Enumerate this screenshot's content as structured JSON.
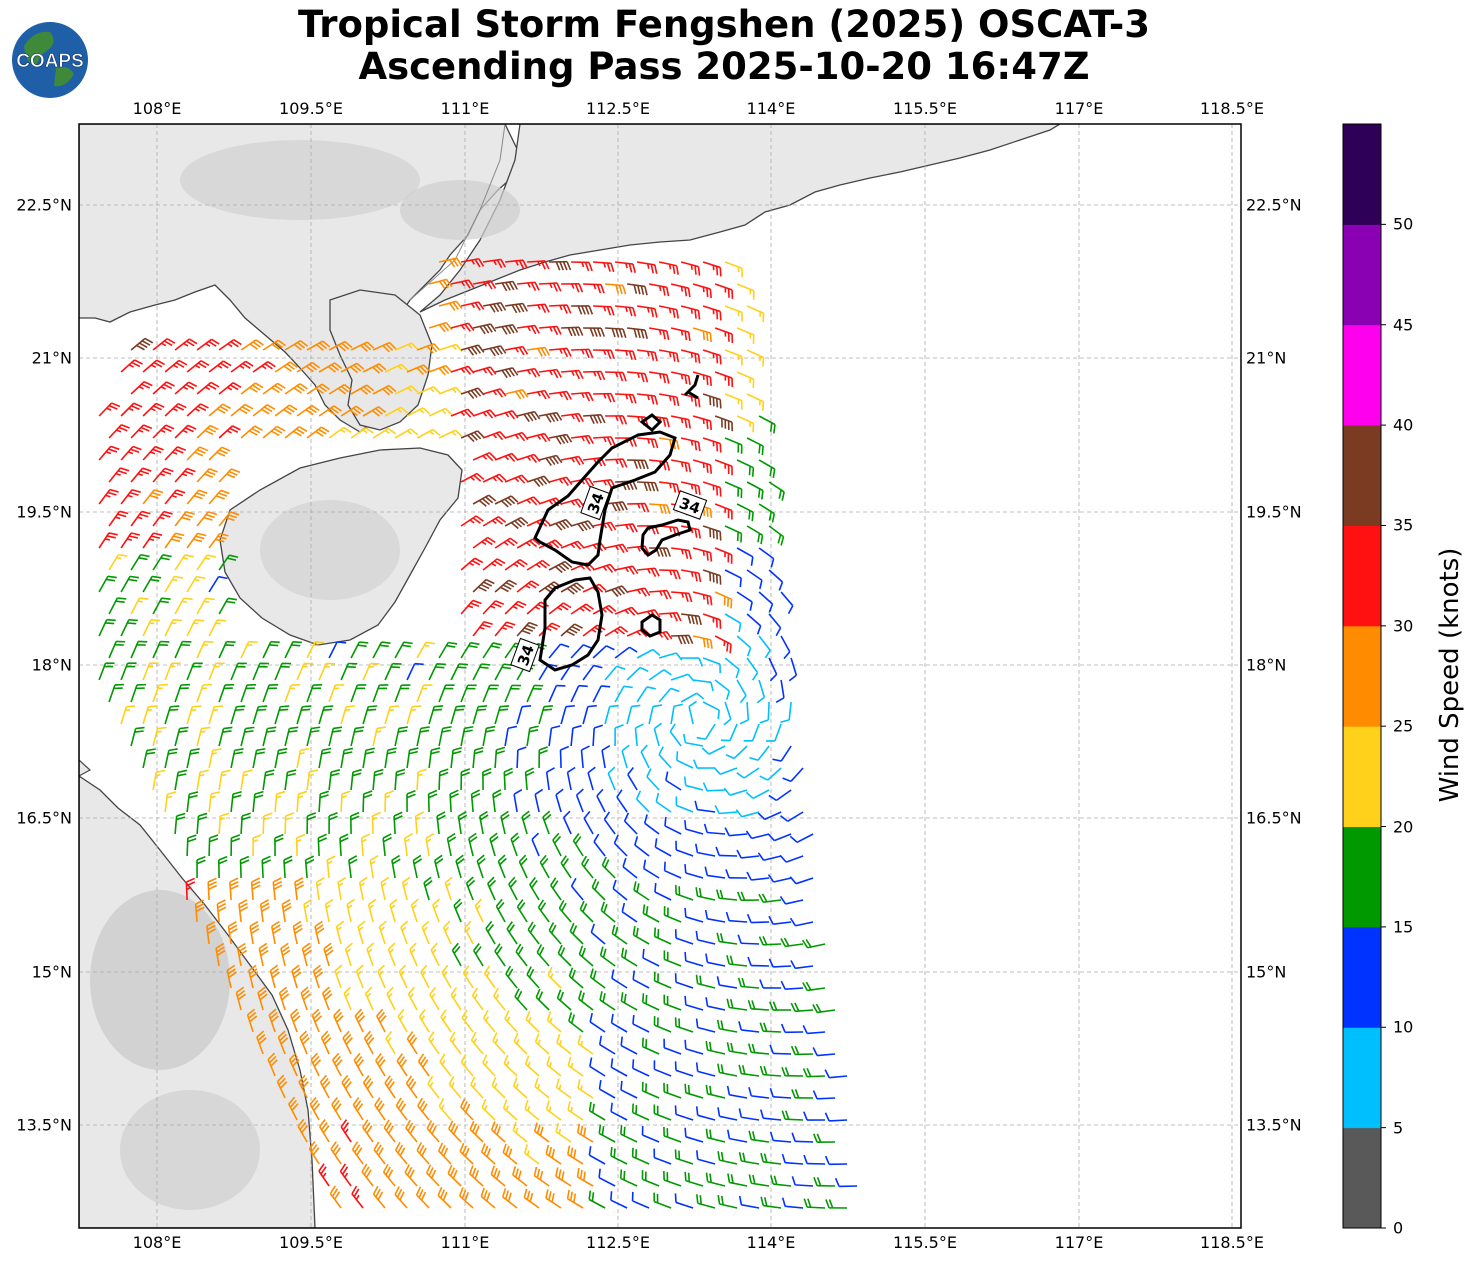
{
  "title_line1": "Tropical Storm Fengshen (2025) OSCAT-3",
  "title_line2": "Ascending Pass 2025-10-20 16:47Z",
  "logo_text": "COAPS",
  "lon_ticks": [
    "108°E",
    "109.5°E",
    "111°E",
    "112.5°E",
    "114°E",
    "115.5°E",
    "117°E",
    "118.5°E"
  ],
  "lat_ticks": [
    "22.5°N",
    "21°N",
    "19.5°N",
    "18°N",
    "16.5°N",
    "15°N",
    "13.5°N"
  ],
  "colorbar": {
    "label": "Wind Speed (knots)",
    "ticks": [
      "0",
      "5",
      "10",
      "15",
      "20",
      "25",
      "30",
      "35",
      "40",
      "45",
      "50"
    ],
    "colors": [
      "#595959",
      "#00bfff",
      "#0033ff",
      "#009900",
      "#ffd11a",
      "#ff8c00",
      "#ff1111",
      "#7a3b22",
      "#ff00ee",
      "#8a00b3",
      "#2e0057"
    ]
  },
  "contour_label": "34",
  "map_colors": {
    "land": "#e8e8e8",
    "ocean": "#ffffff",
    "coast": "#333333",
    "grid": "#aaaaaa"
  }
}
